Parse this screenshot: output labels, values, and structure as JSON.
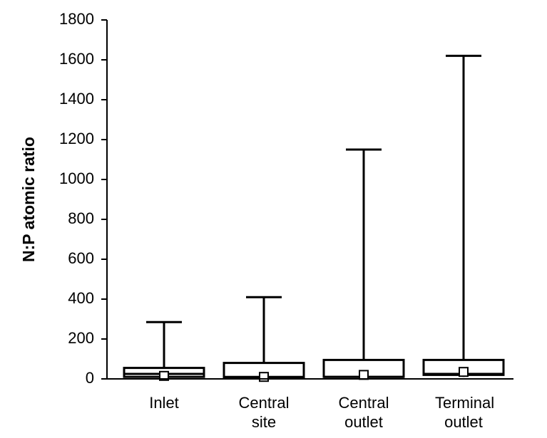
{
  "chart_data": {
    "type": "box",
    "y_label": "N:P atomic ratio",
    "categories": [
      "Inlet",
      "Central site",
      "Central outlet",
      "Terminal outlet"
    ],
    "min": [
      0,
      0,
      0,
      10
    ],
    "q1": [
      10,
      5,
      10,
      20
    ],
    "median": [
      25,
      10,
      10,
      25
    ],
    "q3": [
      55,
      80,
      95,
      95
    ],
    "max": [
      285,
      410,
      1150,
      1620
    ],
    "mean": [
      15,
      10,
      20,
      35
    ],
    "ylim": [
      0,
      1800
    ],
    "yticks": [
      0,
      200,
      400,
      600,
      800,
      1000,
      1200,
      1400,
      1600,
      1800
    ],
    "color": "#ffffff"
  }
}
